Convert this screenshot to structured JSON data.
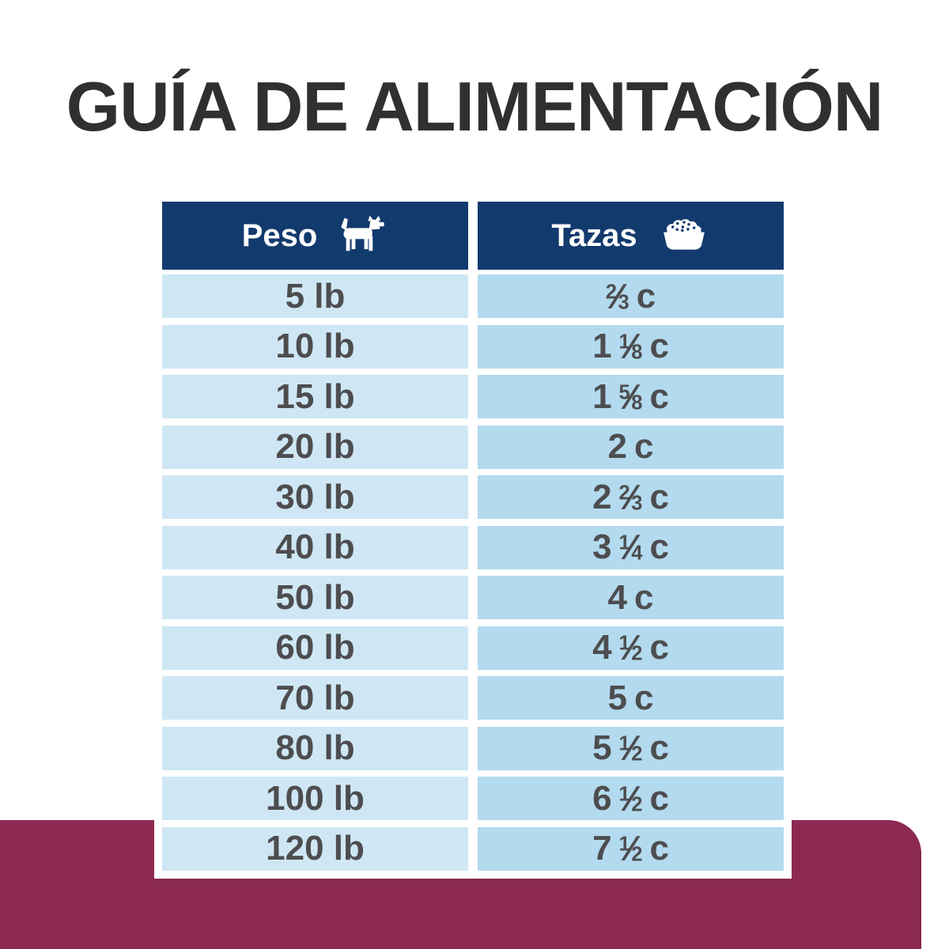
{
  "page": {
    "title": "GUÍA DE ALIMENTACIÓN"
  },
  "colors": {
    "title_text": "#303030",
    "header_bg": "#133a6d",
    "header_text": "#ffffff",
    "row_bg_weight_col": "#cfe7f4",
    "row_bg_cups_col": "#b3daee",
    "cell_text": "#4d4d4f",
    "bottom_band": "#8c2a52",
    "page_bg": "#ffffff"
  },
  "table": {
    "columns": [
      {
        "label": "Peso",
        "icon": "dog-icon"
      },
      {
        "label": "Tazas",
        "icon": "food-bowl-icon"
      }
    ],
    "rows": [
      {
        "weight": "5 lb",
        "cups_text": "2/3 c",
        "cups_whole": "",
        "cups_num": "2",
        "cups_den": "3",
        "cups_unit": "c"
      },
      {
        "weight": "10 lb",
        "cups_text": "1 1/8 c",
        "cups_whole": "1",
        "cups_num": "1",
        "cups_den": "8",
        "cups_unit": "c"
      },
      {
        "weight": "15 lb",
        "cups_text": "1 5/8 c",
        "cups_whole": "1",
        "cups_num": "5",
        "cups_den": "8",
        "cups_unit": "c"
      },
      {
        "weight": "20 lb",
        "cups_text": "2 c",
        "cups_whole": "2",
        "cups_num": "",
        "cups_den": "",
        "cups_unit": "c"
      },
      {
        "weight": "30 lb",
        "cups_text": "2 2/3 c",
        "cups_whole": "2",
        "cups_num": "2",
        "cups_den": "3",
        "cups_unit": "c"
      },
      {
        "weight": "40 lb",
        "cups_text": "3 1/4 c",
        "cups_whole": "3",
        "cups_num": "1",
        "cups_den": "4",
        "cups_unit": "c"
      },
      {
        "weight": "50 lb",
        "cups_text": "4 c",
        "cups_whole": "4",
        "cups_num": "",
        "cups_den": "",
        "cups_unit": "c"
      },
      {
        "weight": "60 lb",
        "cups_text": "4 1/2 c",
        "cups_whole": "4",
        "cups_num": "1",
        "cups_den": "2",
        "cups_unit": "c"
      },
      {
        "weight": "70 lb",
        "cups_text": "5 c",
        "cups_whole": "5",
        "cups_num": "",
        "cups_den": "",
        "cups_unit": "c"
      },
      {
        "weight": "80 lb",
        "cups_text": "5 1/2 c",
        "cups_whole": "5",
        "cups_num": "1",
        "cups_den": "2",
        "cups_unit": "c"
      },
      {
        "weight": "100 lb",
        "cups_text": "6 1/2 c",
        "cups_whole": "6",
        "cups_num": "1",
        "cups_den": "2",
        "cups_unit": "c"
      },
      {
        "weight": "120 lb",
        "cups_text": "7 1/2 c",
        "cups_whole": "7",
        "cups_num": "1",
        "cups_den": "2",
        "cups_unit": "c"
      }
    ]
  }
}
